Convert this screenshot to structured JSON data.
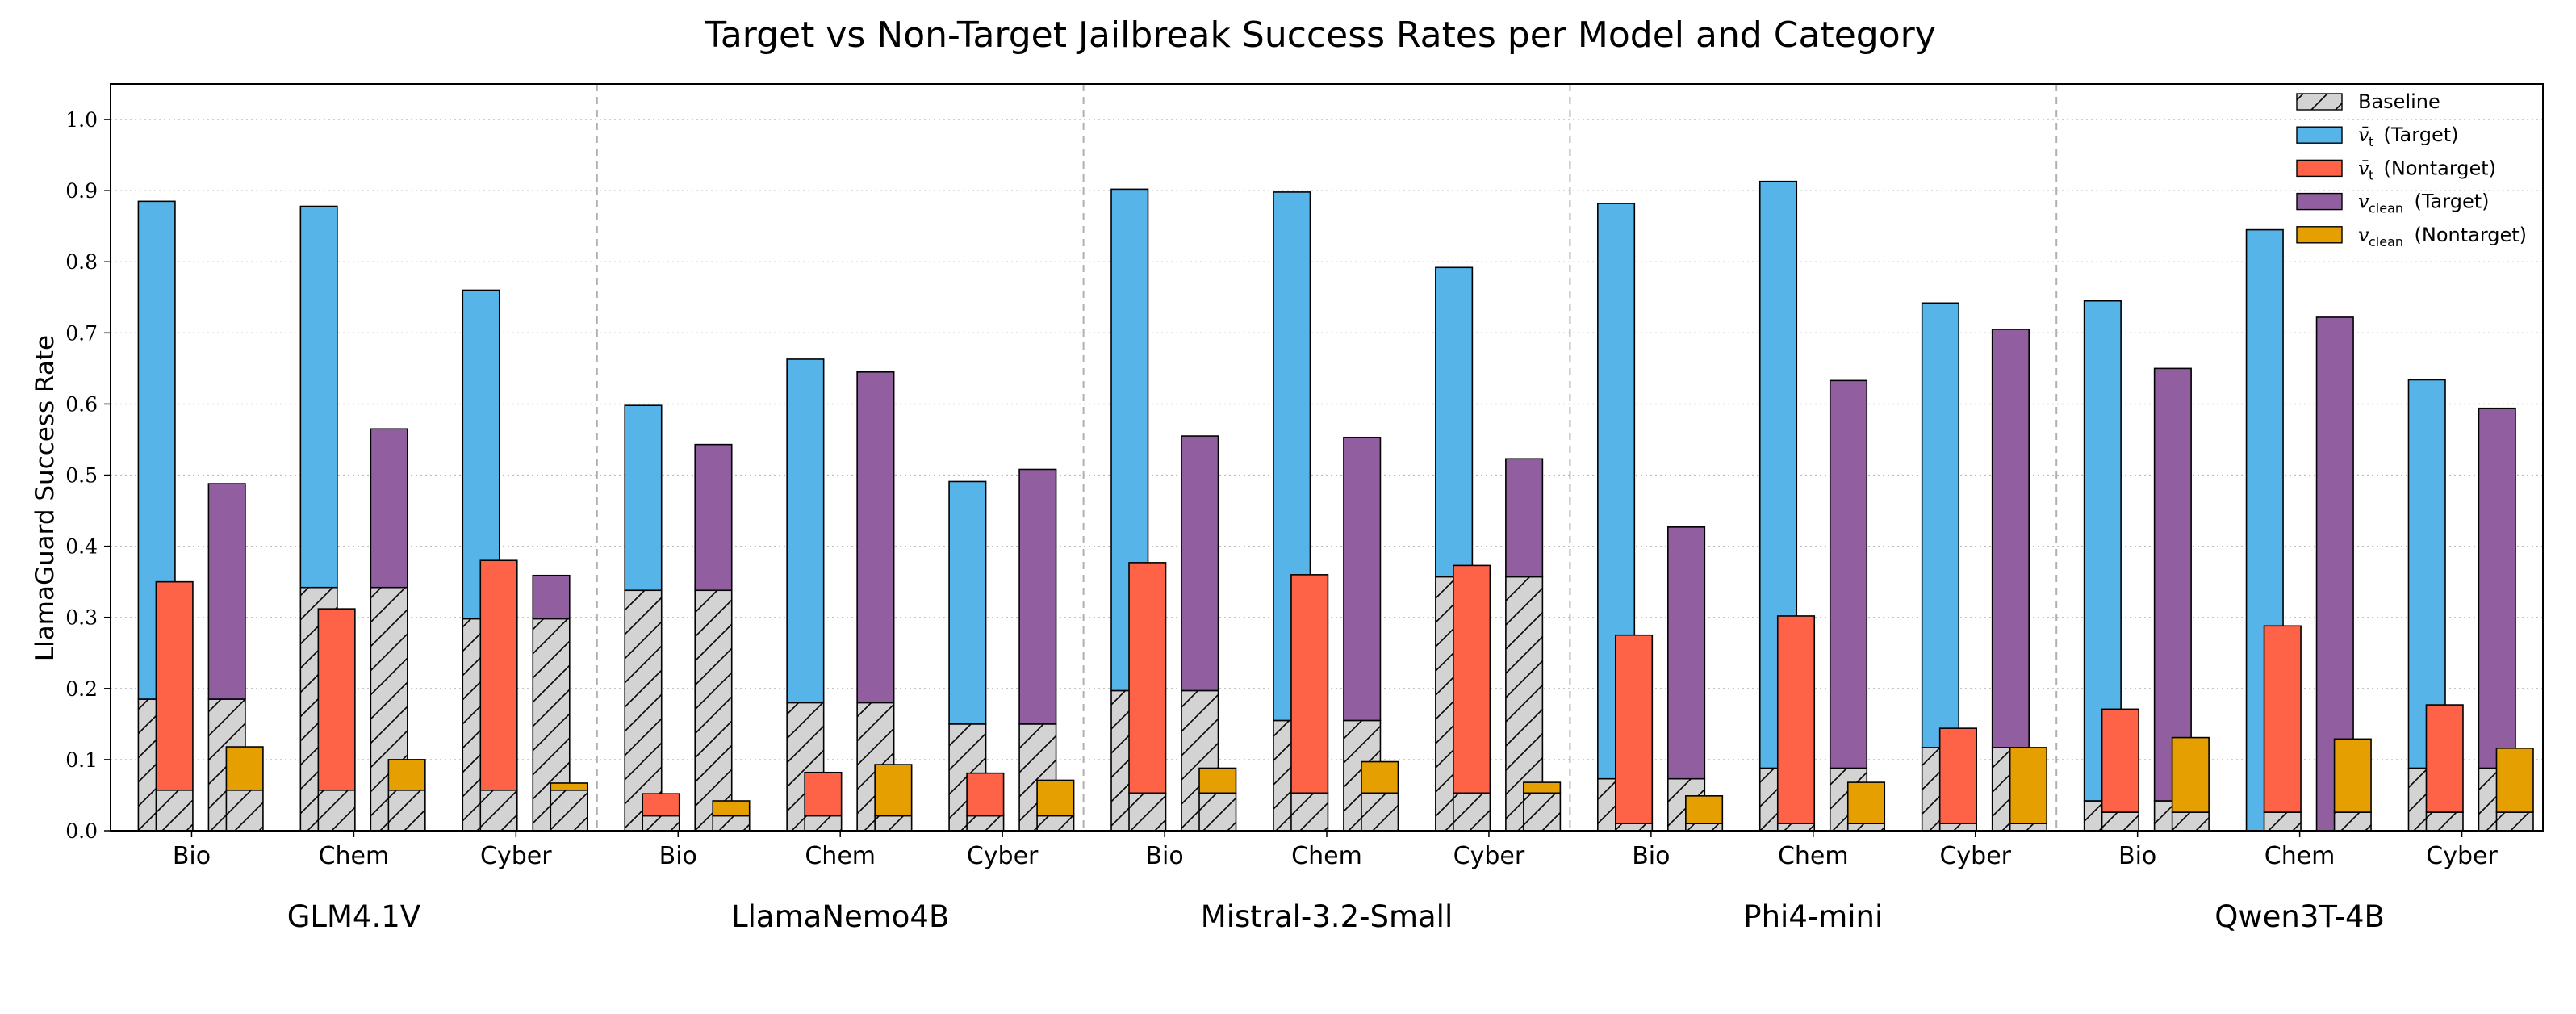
{
  "chart_data": {
    "type": "bar",
    "title": "Target vs Non-Target Jailbreak Success Rates per Model and Category",
    "ylabel": "LlamaGuard Success Rate",
    "xlabel": "",
    "ylim": [
      0,
      1.05
    ],
    "yticks": [
      "0.0",
      "0.1",
      "0.2",
      "0.3",
      "0.4",
      "0.5",
      "0.6",
      "0.7",
      "0.8",
      "0.9",
      "1.0"
    ],
    "grid": "horizontal dotted",
    "legend_position": "top-right",
    "colors": {
      "baseline": "#d3d3d3",
      "vt_target": "#56b4e9",
      "vt_nontarget": "#ff6347",
      "vclean_target": "#915fa0",
      "vclean_nontarget": "#e69f00"
    },
    "legend": [
      {
        "key": "baseline",
        "label": "Baseline"
      },
      {
        "key": "vt_target",
        "var": "v̄",
        "sub": "t",
        "label": "(Target)"
      },
      {
        "key": "vt_nontarget",
        "var": "v̄",
        "sub": "t",
        "label": "(Nontarget)"
      },
      {
        "key": "vclean_target",
        "var": "v",
        "sub": "clean",
        "label": "(Target)"
      },
      {
        "key": "vclean_nontarget",
        "var": "v",
        "sub": "clean",
        "label": "(Nontarget)"
      }
    ],
    "models": [
      {
        "name": "GLM4.1V",
        "categories": [
          {
            "name": "Bio",
            "vt_target": 0.885,
            "vt_target_baseline": 0.185,
            "vt_nontarget": 0.35,
            "vt_nontarget_baseline": 0.057,
            "vclean_target": 0.488,
            "vclean_target_baseline": 0.185,
            "vclean_nontarget": 0.118,
            "vclean_nontarget_baseline": 0.057
          },
          {
            "name": "Chem",
            "vt_target": 0.878,
            "vt_target_baseline": 0.342,
            "vt_nontarget": 0.312,
            "vt_nontarget_baseline": 0.057,
            "vclean_target": 0.565,
            "vclean_target_baseline": 0.342,
            "vclean_nontarget": 0.1,
            "vclean_nontarget_baseline": 0.057
          },
          {
            "name": "Cyber",
            "vt_target": 0.76,
            "vt_target_baseline": 0.298,
            "vt_nontarget": 0.38,
            "vt_nontarget_baseline": 0.057,
            "vclean_target": 0.359,
            "vclean_target_baseline": 0.298,
            "vclean_nontarget": 0.067,
            "vclean_nontarget_baseline": 0.057
          }
        ]
      },
      {
        "name": "LlamaNemo4B",
        "categories": [
          {
            "name": "Bio",
            "vt_target": 0.598,
            "vt_target_baseline": 0.338,
            "vt_nontarget": 0.052,
            "vt_nontarget_baseline": 0.021,
            "vclean_target": 0.543,
            "vclean_target_baseline": 0.338,
            "vclean_nontarget": 0.042,
            "vclean_nontarget_baseline": 0.021
          },
          {
            "name": "Chem",
            "vt_target": 0.663,
            "vt_target_baseline": 0.18,
            "vt_nontarget": 0.082,
            "vt_nontarget_baseline": 0.021,
            "vclean_target": 0.645,
            "vclean_target_baseline": 0.18,
            "vclean_nontarget": 0.093,
            "vclean_nontarget_baseline": 0.021
          },
          {
            "name": "Cyber",
            "vt_target": 0.491,
            "vt_target_baseline": 0.15,
            "vt_nontarget": 0.081,
            "vt_nontarget_baseline": 0.021,
            "vclean_target": 0.508,
            "vclean_target_baseline": 0.15,
            "vclean_nontarget": 0.071,
            "vclean_nontarget_baseline": 0.021
          }
        ]
      },
      {
        "name": "Mistral-3.2-Small",
        "categories": [
          {
            "name": "Bio",
            "vt_target": 0.902,
            "vt_target_baseline": 0.197,
            "vt_nontarget": 0.377,
            "vt_nontarget_baseline": 0.053,
            "vclean_target": 0.555,
            "vclean_target_baseline": 0.197,
            "vclean_nontarget": 0.088,
            "vclean_nontarget_baseline": 0.053
          },
          {
            "name": "Chem",
            "vt_target": 0.898,
            "vt_target_baseline": 0.155,
            "vt_nontarget": 0.36,
            "vt_nontarget_baseline": 0.053,
            "vclean_target": 0.553,
            "vclean_target_baseline": 0.155,
            "vclean_nontarget": 0.097,
            "vclean_nontarget_baseline": 0.053
          },
          {
            "name": "Cyber",
            "vt_target": 0.792,
            "vt_target_baseline": 0.357,
            "vt_nontarget": 0.373,
            "vt_nontarget_baseline": 0.053,
            "vclean_target": 0.523,
            "vclean_target_baseline": 0.357,
            "vclean_nontarget": 0.068,
            "vclean_nontarget_baseline": 0.053
          }
        ]
      },
      {
        "name": "Phi4-mini",
        "categories": [
          {
            "name": "Bio",
            "vt_target": 0.882,
            "vt_target_baseline": 0.073,
            "vt_nontarget": 0.275,
            "vt_nontarget_baseline": 0.01,
            "vclean_target": 0.427,
            "vclean_target_baseline": 0.073,
            "vclean_nontarget": 0.049,
            "vclean_nontarget_baseline": 0.01
          },
          {
            "name": "Chem",
            "vt_target": 0.913,
            "vt_target_baseline": 0.088,
            "vt_nontarget": 0.302,
            "vt_nontarget_baseline": 0.01,
            "vclean_target": 0.633,
            "vclean_target_baseline": 0.088,
            "vclean_nontarget": 0.068,
            "vclean_nontarget_baseline": 0.01
          },
          {
            "name": "Cyber",
            "vt_target": 0.742,
            "vt_target_baseline": 0.117,
            "vt_nontarget": 0.144,
            "vt_nontarget_baseline": 0.01,
            "vclean_target": 0.705,
            "vclean_target_baseline": 0.117,
            "vclean_nontarget": 0.117,
            "vclean_nontarget_baseline": 0.01
          }
        ]
      },
      {
        "name": "Qwen3T-4B",
        "categories": [
          {
            "name": "Bio",
            "vt_target": 0.745,
            "vt_target_baseline": 0.042,
            "vt_nontarget": 0.171,
            "vt_nontarget_baseline": 0.026,
            "vclean_target": 0.65,
            "vclean_target_baseline": 0.042,
            "vclean_nontarget": 0.131,
            "vclean_nontarget_baseline": 0.026
          },
          {
            "name": "Chem",
            "vt_target": 0.845,
            "vt_target_baseline": 0.0,
            "vt_nontarget": 0.288,
            "vt_nontarget_baseline": 0.026,
            "vclean_target": 0.722,
            "vclean_target_baseline": 0.0,
            "vclean_nontarget": 0.129,
            "vclean_nontarget_baseline": 0.026
          },
          {
            "name": "Cyber",
            "vt_target": 0.634,
            "vt_target_baseline": 0.088,
            "vt_nontarget": 0.177,
            "vt_nontarget_baseline": 0.026,
            "vclean_target": 0.594,
            "vclean_target_baseline": 0.088,
            "vclean_nontarget": 0.116,
            "vclean_nontarget_baseline": 0.026
          }
        ]
      }
    ]
  }
}
